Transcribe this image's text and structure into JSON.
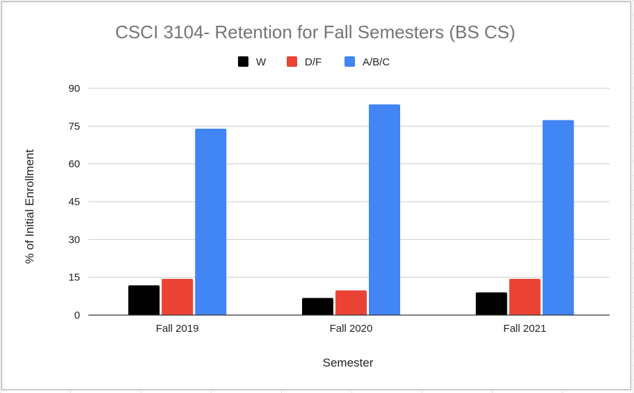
{
  "chart_data": {
    "type": "bar",
    "title": "CSCI 3104- Retention for Fall Semesters (BS CS)",
    "xlabel": "Semester",
    "ylabel": "% of Initial Enrollment",
    "categories": [
      "Fall 2019",
      "Fall 2020",
      "Fall 2021"
    ],
    "series": [
      {
        "name": "W",
        "color": "#000000",
        "values": [
          11.8,
          6.8,
          9.0
        ]
      },
      {
        "name": "D/F",
        "color": "#ea4335",
        "values": [
          14.4,
          9.8,
          14.4
        ]
      },
      {
        "name": "A/B/C",
        "color": "#4285f4",
        "values": [
          74.0,
          83.6,
          77.4
        ]
      }
    ],
    "ylim": [
      0,
      90
    ],
    "yticks": [
      0,
      15,
      30,
      45,
      60,
      75,
      90
    ],
    "grid": true,
    "legend_position": "top-center"
  }
}
